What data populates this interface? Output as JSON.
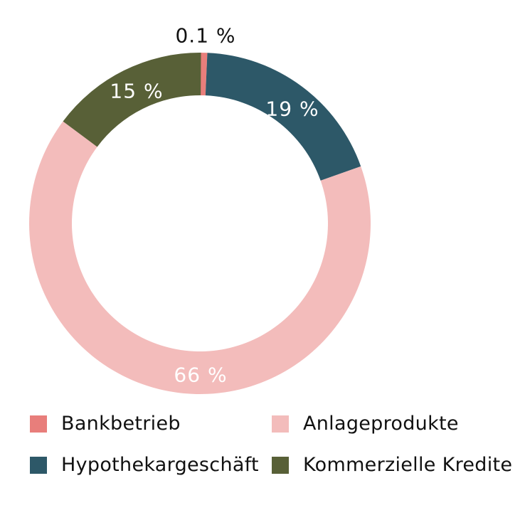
{
  "chart_data": {
    "type": "pie",
    "variant": "donut",
    "title": "",
    "categories": [
      "Bankbetrieb",
      "Hypothekargeschäft",
      "Anlageprodukte",
      "Kommerzielle Kredite"
    ],
    "values": [
      0.1,
      19,
      66,
      15
    ],
    "labels": [
      "0.1 %",
      "19 %",
      "66 %",
      "15 %"
    ],
    "colors": [
      "#e87e7b",
      "#2d5868",
      "#f3bcbb",
      "#586037"
    ],
    "start_angle": "top (12 o'clock)",
    "direction": "clockwise",
    "legend_position": "bottom"
  },
  "legend": [
    {
      "label": "Bankbetrieb",
      "color": "#e87e7b"
    },
    {
      "label": "Anlageprodukte",
      "color": "#f3bcbb"
    },
    {
      "label": "Hypothekargeschäft",
      "color": "#2d5868"
    },
    {
      "label": "Kommerzielle Kredite",
      "color": "#586037"
    }
  ]
}
